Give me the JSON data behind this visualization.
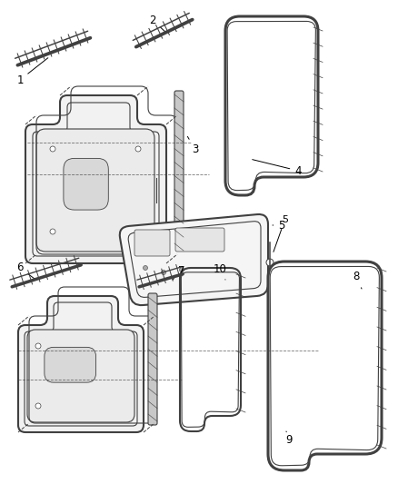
{
  "background_color": "#ffffff",
  "line_color": "#404040",
  "label_color": "#000000",
  "figsize": [
    4.38,
    5.33
  ],
  "dpi": 100
}
